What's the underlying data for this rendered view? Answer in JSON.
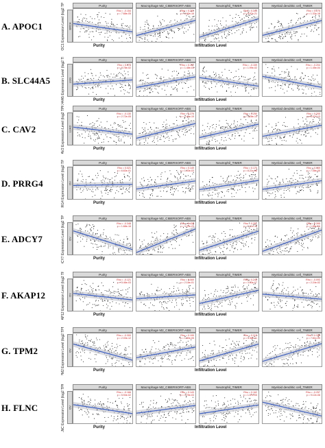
{
  "figure": {
    "panel_titles": [
      "Purity",
      "Macrophage M2_CIBERSORT-ABS",
      "Neutrophil_TIMER",
      "Myeloid dendritic cell_TIMER"
    ],
    "x_labels": {
      "purity": "Purity",
      "infiltration": "Infiltration Level"
    },
    "stats_labels": {
      "rho": "Rho =",
      "p": "p ="
    },
    "rows": [
      {
        "label": "A. APOC1",
        "ylabel": "APOC1 Expression Level (log2 TPM)",
        "strip": "BRCA",
        "stats": [
          [
            "-0.154",
            "7.68e-05"
          ],
          [
            "0.281",
            "5.62e-16"
          ],
          [
            "0.343",
            "8.97e-21"
          ],
          [
            "0.275",
            "1.32e-18"
          ]
        ]
      },
      {
        "label": "B. SLC44A5",
        "ylabel": "SLC44A5 Expression Level (log2 TPM)",
        "strip": "LGG",
        "stats": [
          [
            "0.078",
            "8.78e-02"
          ],
          [
            "0.197",
            "1.48e-03"
          ],
          [
            "-0.159",
            "1.99e-02"
          ],
          [
            "-0.204",
            "1.45e-04"
          ]
        ]
      },
      {
        "label": "C. CAV2",
        "ylabel": "CAV2 Expression Level (log2 TPM)",
        "strip": "LUAD",
        "stats": [
          [
            "-0.130",
            "2.72e-05"
          ],
          [
            "0.276",
            "1.41e-15"
          ],
          [
            "0.250",
            "3.28e-13"
          ],
          [
            "0.205",
            "6.07e-13"
          ]
        ]
      },
      {
        "label": "D. PRRG4",
        "ylabel": "PRRG4 Expression Level (log2 TPM)",
        "strip": "OV",
        "stats": [
          [
            "0.021",
            "6.63e-01"
          ],
          [
            "0.149",
            "1.03e-03"
          ],
          [
            "0.170",
            "8.21e-06"
          ],
          [
            "0.159",
            "7.08e-05"
          ]
        ]
      },
      {
        "label": "E. ADCY7",
        "ylabel": "ADCY7 Expression Level (log2 TPM)",
        "strip": "OV",
        "stats": [
          [
            "-0.348",
            "1.68e-16"
          ],
          [
            "0.438",
            "3.23e-23"
          ],
          [
            "0.357",
            "1.11e-14"
          ],
          [
            "0.395",
            "1.89e-16"
          ]
        ]
      },
      {
        "label": "F. AKAP12",
        "ylabel": "AKAP12 Expression Level (log2 TPM)",
        "strip": "OV",
        "stats": [
          [
            "-0.121",
            "5.46e-03"
          ],
          [
            "0.069",
            "2.18e-01"
          ],
          [
            "0.245",
            "3.33e-07"
          ],
          [
            "-0.093",
            "2.24e-02"
          ]
        ]
      },
      {
        "label": "G. TPM2",
        "ylabel": "TPM2 Expression Level (log2 TPM)",
        "strip": "OV",
        "stats": [
          [
            "-0.300",
            "2.03e-12"
          ],
          [
            "0.199",
            "1.50e-05"
          ],
          [
            "0.313",
            "5.38e-11"
          ],
          [
            "0.330",
            "7.81e-09"
          ]
        ]
      },
      {
        "label": "H. FLNC",
        "ylabel": "FLNC Expression Level (log2 TPM)",
        "strip": "OV",
        "stats": [
          [
            "-0.166",
            "5.94e-02"
          ],
          [
            "0.143",
            "3.75e-03"
          ],
          [
            "0.162",
            "1.57e-05"
          ],
          [
            "-0.257",
            "9.12e-08"
          ]
        ]
      }
    ],
    "colors": {
      "points": "#1a1a1a",
      "fit_line": "#3b5fc4",
      "ci_band": "#b9bec9",
      "stats": "#d41f1f",
      "strip": "#d9d9d9"
    }
  }
}
